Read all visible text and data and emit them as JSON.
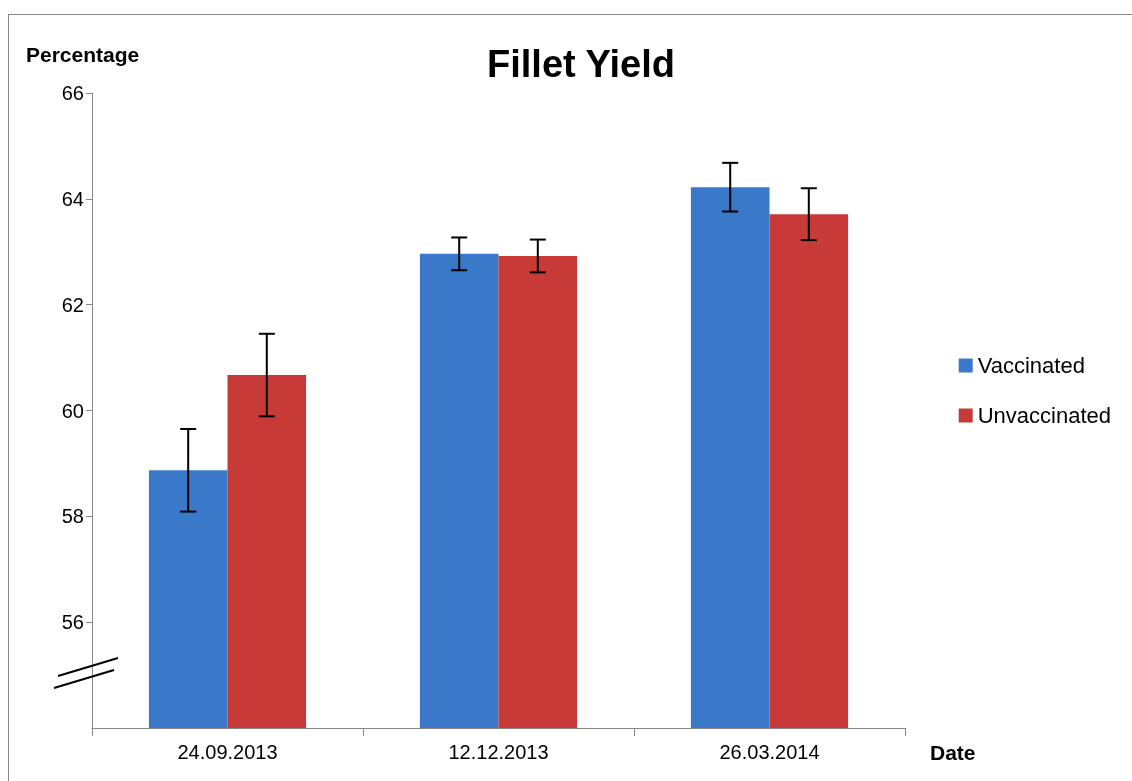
{
  "chart_data": {
    "type": "bar",
    "title": "Fillet Yield",
    "xlabel": "Date",
    "ylabel": "Percentage",
    "categories": [
      "24.09.2013",
      "12.12.2013",
      "26.03.2014"
    ],
    "series": [
      {
        "name": "Vaccinated",
        "color": "#3a78c9",
        "values": [
          58.87,
          62.96,
          64.22
        ],
        "errors": [
          0.78,
          0.31,
          0.46
        ]
      },
      {
        "name": "Unvaccinated",
        "color": "#c83a37",
        "values": [
          60.67,
          62.92,
          63.71
        ],
        "errors": [
          0.78,
          0.31,
          0.49
        ]
      }
    ],
    "ylim": [
      54,
      66
    ],
    "yticks": [
      56,
      58,
      60,
      62,
      64,
      66
    ],
    "grid": false,
    "legend": "right"
  }
}
